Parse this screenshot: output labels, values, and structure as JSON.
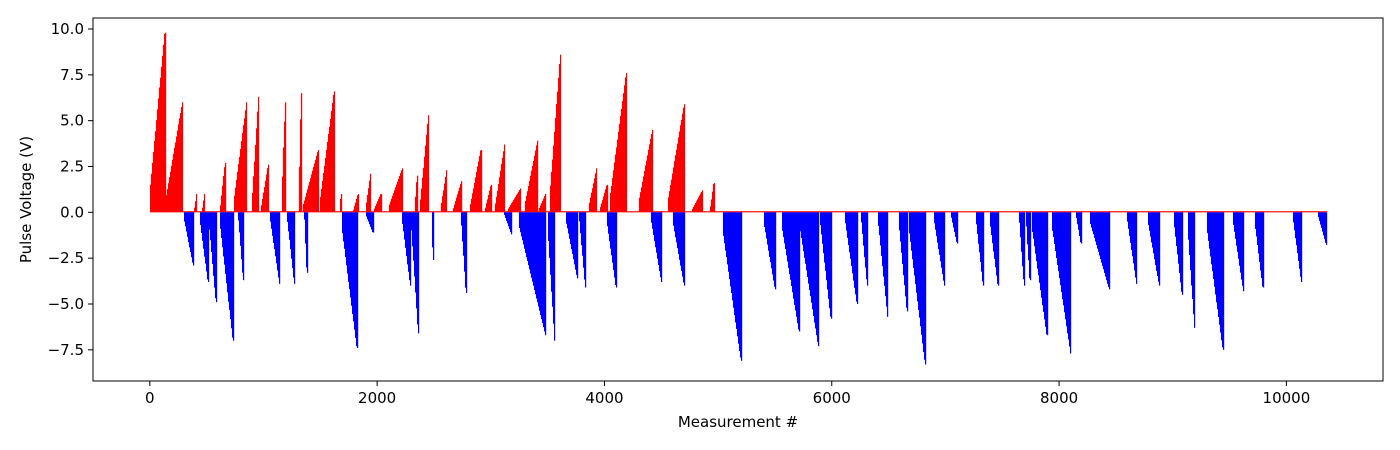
{
  "chart_data": {
    "type": "bar",
    "title": "",
    "xlabel": "Measurement #",
    "ylabel": "Pulse Voltage (V)",
    "xlim": [
      -500,
      10850
    ],
    "ylim": [
      -9.2,
      10.6
    ],
    "xticks": [
      0,
      2000,
      4000,
      6000,
      8000,
      10000
    ],
    "xtick_labels": [
      "0",
      "2000",
      "4000",
      "6000",
      "8000",
      "10000"
    ],
    "yticks": [
      -7.5,
      -5.0,
      -2.5,
      0.0,
      2.5,
      5.0,
      7.5,
      10.0
    ],
    "ytick_labels": [
      "−7.5",
      "−5.0",
      "−2.5",
      "0.0",
      "2.5",
      "5.0",
      "7.5",
      "10.0"
    ],
    "grid": false,
    "colors": {
      "positive": "#ff0000",
      "negative": "#0000ff"
    },
    "n_points": 10350,
    "series": [
      {
        "color": "#ff0000",
        "ramps": [
          [
            0,
            130,
            9.8
          ],
          [
            140,
            285,
            6.0
          ],
          [
            390,
            410,
            1.0
          ],
          [
            460,
            480,
            1.0
          ],
          [
            620,
            660,
            2.7
          ],
          [
            740,
            850,
            6.0
          ],
          [
            900,
            955,
            6.3
          ],
          [
            980,
            1040,
            2.6
          ],
          [
            1160,
            1190,
            6.0
          ],
          [
            1310,
            1330,
            6.5
          ],
          [
            1350,
            1480,
            3.4
          ],
          [
            1500,
            1620,
            6.6
          ],
          [
            1670,
            1680,
            1.0
          ],
          [
            1790,
            1830,
            1.0
          ],
          [
            1900,
            1940,
            2.1
          ],
          [
            1970,
            2030,
            1.0
          ],
          [
            2100,
            2220,
            2.4
          ],
          [
            2330,
            2350,
            2.0
          ],
          [
            2380,
            2450,
            5.3
          ],
          [
            2560,
            2610,
            2.3
          ],
          [
            2670,
            2740,
            1.7
          ],
          [
            2820,
            2910,
            3.4
          ],
          [
            2950,
            3000,
            1.5
          ],
          [
            3040,
            3120,
            3.7
          ],
          [
            3150,
            3260,
            1.3
          ],
          [
            3300,
            3410,
            3.9
          ],
          [
            3420,
            3480,
            1.0
          ],
          [
            3520,
            3610,
            8.6
          ],
          [
            3860,
            3930,
            2.4
          ],
          [
            3960,
            4020,
            1.5
          ],
          [
            4050,
            4190,
            7.6
          ],
          [
            4300,
            4420,
            4.5
          ],
          [
            4560,
            4700,
            5.9
          ],
          [
            4770,
            4860,
            1.2
          ],
          [
            4930,
            4960,
            1.6
          ]
        ]
      },
      {
        "color": "#0000ff",
        "ramps": [
          [
            300,
            380,
            -2.9
          ],
          [
            440,
            510,
            -3.8
          ],
          [
            520,
            580,
            -4.9
          ],
          [
            620,
            730,
            -7.0
          ],
          [
            780,
            820,
            -3.7
          ],
          [
            1060,
            1140,
            -3.9
          ],
          [
            1210,
            1270,
            -3.9
          ],
          [
            1360,
            1380,
            -3.3
          ],
          [
            1690,
            1820,
            -7.4
          ],
          [
            1900,
            1960,
            -1.1
          ],
          [
            2220,
            2290,
            -4.0
          ],
          [
            2300,
            2360,
            -6.6
          ],
          [
            2480,
            2490,
            -2.6
          ],
          [
            2740,
            2780,
            -4.4
          ],
          [
            3120,
            3180,
            -1.2
          ],
          [
            3250,
            3480,
            -6.7
          ],
          [
            3500,
            3560,
            -7.0
          ],
          [
            3660,
            3760,
            -3.6
          ],
          [
            3780,
            3830,
            -4.1
          ],
          [
            4020,
            4100,
            -4.1
          ],
          [
            4410,
            4500,
            -3.8
          ],
          [
            4600,
            4700,
            -4.0
          ],
          [
            5040,
            5200,
            -8.1
          ],
          [
            5400,
            5500,
            -4.2
          ],
          [
            5560,
            5710,
            -6.5
          ],
          [
            5720,
            5880,
            -7.3
          ],
          [
            5900,
            5990,
            -5.8
          ],
          [
            6120,
            6220,
            -5.0
          ],
          [
            6260,
            6310,
            -4.0
          ],
          [
            6410,
            6490,
            -5.7
          ],
          [
            6590,
            6660,
            -5.4
          ],
          [
            6680,
            6820,
            -8.3
          ],
          [
            6900,
            6990,
            -4.0
          ],
          [
            7050,
            7100,
            -1.7
          ],
          [
            7270,
            7330,
            -4.0
          ],
          [
            7390,
            7460,
            -4.0
          ],
          [
            7650,
            7690,
            -4.0
          ],
          [
            7710,
            7740,
            -3.7
          ],
          [
            7760,
            7890,
            -6.7
          ],
          [
            7940,
            8100,
            -7.7
          ],
          [
            8150,
            8190,
            -1.7
          ],
          [
            8270,
            8440,
            -4.2
          ],
          [
            8600,
            8680,
            -3.9
          ],
          [
            8780,
            8880,
            -4.0
          ],
          [
            9010,
            9080,
            -4.5
          ],
          [
            9130,
            9190,
            -6.3
          ],
          [
            9300,
            9440,
            -7.5
          ],
          [
            9530,
            9620,
            -4.3
          ],
          [
            9720,
            9790,
            -4.1
          ],
          [
            10060,
            10130,
            -3.8
          ],
          [
            10280,
            10350,
            -1.8
          ]
        ]
      }
    ]
  }
}
